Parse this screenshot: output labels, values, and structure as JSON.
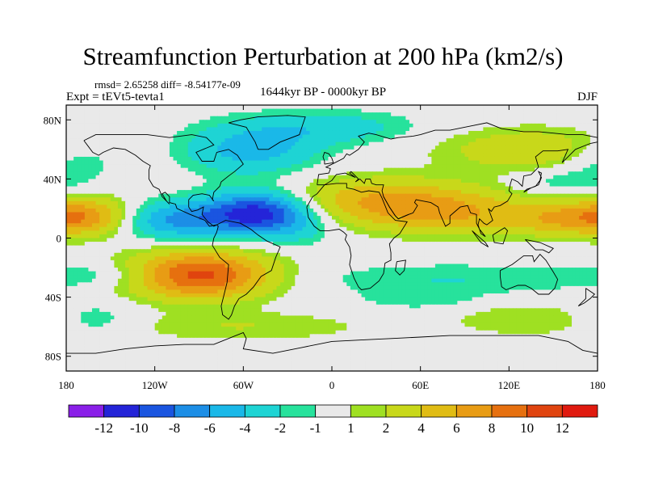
{
  "title": "Streamfunction Perturbation at 200 hPa (km2/s)",
  "stats_line": "rmsd= 2.65258  diff= -8.54177e-09",
  "experiment": "Expt = tEVt5-tevta1",
  "period": "1644kyr BP - 0000kyr BP",
  "season": "DJF",
  "lon_ticks": [
    {
      "lon": -180,
      "label": "180"
    },
    {
      "lon": -120,
      "label": "120W"
    },
    {
      "lon": -60,
      "label": "60W"
    },
    {
      "lon": 0,
      "label": "0"
    },
    {
      "lon": 60,
      "label": "60E"
    },
    {
      "lon": 120,
      "label": "120E"
    },
    {
      "lon": 180,
      "label": "180"
    }
  ],
  "lat_ticks": [
    {
      "lat": 80,
      "label": "80N"
    },
    {
      "lat": 40,
      "label": "40N"
    },
    {
      "lat": 0,
      "label": "0"
    },
    {
      "lat": -40,
      "label": "40S"
    },
    {
      "lat": -80,
      "label": "80S"
    }
  ],
  "colorbar": {
    "colors": [
      "#8a1fe8",
      "#2424d8",
      "#1a55e0",
      "#1c8ee6",
      "#1ab8e8",
      "#1ed4d4",
      "#27e29c",
      "#e9e9e9",
      "#9fe022",
      "#c8d81a",
      "#e0bc14",
      "#e89c14",
      "#e6700f",
      "#e0440f",
      "#e01a0f"
    ],
    "labels": [
      "-12",
      "-10",
      "-8",
      "-6",
      "-4",
      "-2",
      "-1",
      "1",
      "2",
      "4",
      "6",
      "8",
      "10",
      "12"
    ]
  },
  "chart_data": {
    "type": "heatmap",
    "title": "Streamfunction Perturbation at 200 hPa (km2/s)",
    "variable": "streamfunction perturbation, 200 hPa",
    "units": "km2/s",
    "experiment": "tEVt5-tevta1",
    "period": "1644kyr BP - 0000kyr BP",
    "season": "DJF",
    "lon_range": [
      -180,
      180
    ],
    "lat_range": [
      -90,
      90
    ],
    "contour_levels": [
      -12,
      -10,
      -8,
      -6,
      -4,
      -2,
      -1,
      1,
      2,
      4,
      6,
      8,
      10,
      12
    ],
    "features": [
      {
        "lon": -50,
        "lat": 17,
        "amp": -12,
        "slon": 26,
        "slat": 10
      },
      {
        "lon": -108,
        "lat": 12,
        "amp": -6,
        "slon": 26,
        "slat": 9
      },
      {
        "lon": -55,
        "lat": 60,
        "amp": -5,
        "slon": 32,
        "slat": 12
      },
      {
        "lon": -90,
        "lat": -25,
        "amp": 11,
        "slon": 34,
        "slat": 11
      },
      {
        "lon": -165,
        "lat": 15,
        "amp": 6,
        "slon": 22,
        "slat": 9
      },
      {
        "lon": 35,
        "lat": 25,
        "amp": 6,
        "slon": 50,
        "slat": 11
      },
      {
        "lon": 85,
        "lat": 15,
        "amp": 4,
        "slon": 40,
        "slat": 10
      },
      {
        "lon": 160,
        "lat": 13,
        "amp": 5,
        "slon": 28,
        "slat": 8
      },
      {
        "lon": 140,
        "lat": 60,
        "amp": 4,
        "slon": 45,
        "slat": 10
      },
      {
        "lon": 0,
        "lat": 75,
        "amp": -3,
        "slon": 40,
        "slat": 8
      },
      {
        "lon": 160,
        "lat": 38,
        "amp": -2,
        "slon": 25,
        "slat": 6
      },
      {
        "lon": -175,
        "lat": 55,
        "amp": -3,
        "slon": 22,
        "slat": 10
      },
      {
        "lon": 80,
        "lat": -28,
        "amp": -2,
        "slon": 70,
        "slat": 8
      },
      {
        "lon": -150,
        "lat": -25,
        "amp": -2,
        "slon": 35,
        "slat": 6
      },
      {
        "lon": -160,
        "lat": -55,
        "amp": -2,
        "slon": 20,
        "slat": 8
      },
      {
        "lon": -60,
        "lat": -60,
        "amp": 2,
        "slon": 60,
        "slat": 7
      },
      {
        "lon": 130,
        "lat": -55,
        "amp": 2,
        "slon": 35,
        "slat": 8
      },
      {
        "lon": 60,
        "lat": -42,
        "amp": -1.5,
        "slon": 30,
        "slat": 5
      },
      {
        "lon": -20,
        "lat": 5,
        "amp": -1.5,
        "slon": 15,
        "slat": 8
      }
    ]
  }
}
